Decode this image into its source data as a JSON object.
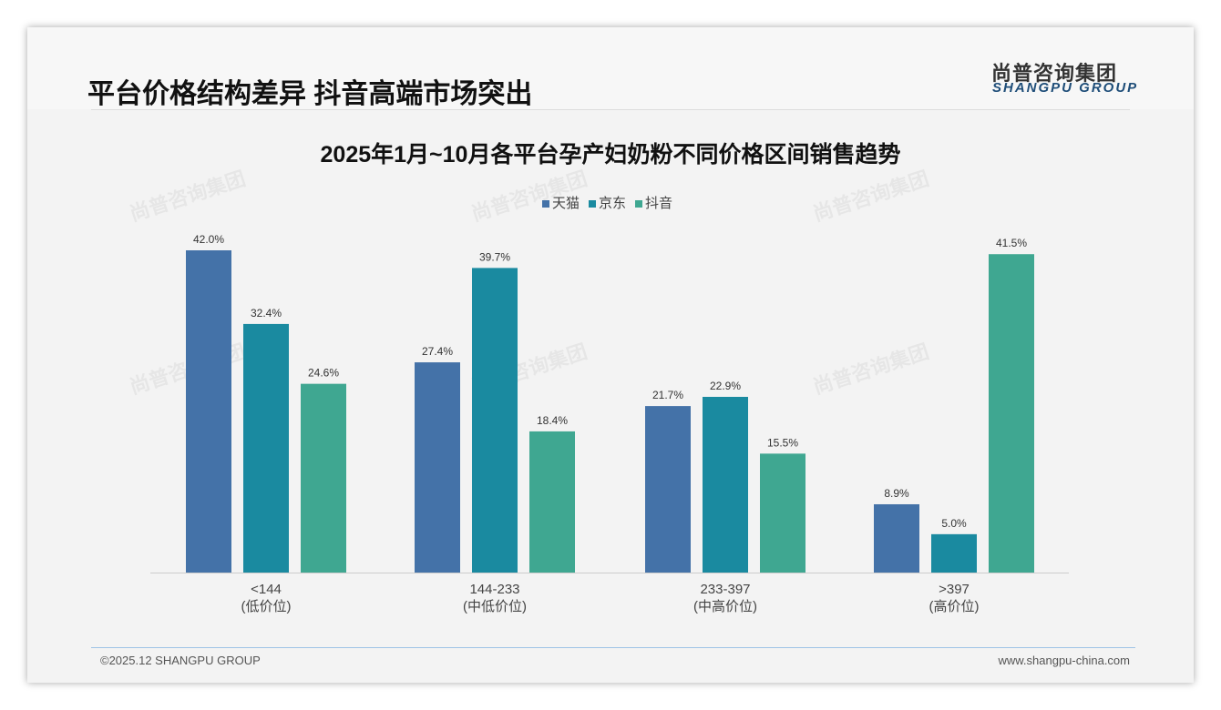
{
  "header": {
    "title": "平台价格结构差异 抖音高端市场突出",
    "logo_cn": "尚普咨询集团",
    "logo_en": "SHANGPU GROUP"
  },
  "footer": {
    "copyright": "©2025.12 SHANGPU GROUP",
    "website": "www.shangpu-china.com"
  },
  "chart_data": {
    "type": "bar",
    "title": "2025年1月~10月各平台孕产妇奶粉不同价格区间销售趋势",
    "categories": [
      "<144",
      "144-233",
      "233-397",
      ">397"
    ],
    "category_sublabels": [
      "(低价位)",
      "(中低价位)",
      "(中高价位)",
      "(高价位)"
    ],
    "series": [
      {
        "name": "天猫",
        "color": "#4472a8",
        "values": [
          42.0,
          27.4,
          21.7,
          8.9
        ]
      },
      {
        "name": "京东",
        "color": "#1a8aa0",
        "values": [
          32.4,
          39.7,
          22.9,
          5.0
        ]
      },
      {
        "name": "抖音",
        "color": "#3fa791",
        "values": [
          24.6,
          18.4,
          15.5,
          41.5
        ]
      }
    ],
    "value_format": "%",
    "ylim": [
      0,
      45
    ],
    "legend": "top-center",
    "grid": false
  }
}
